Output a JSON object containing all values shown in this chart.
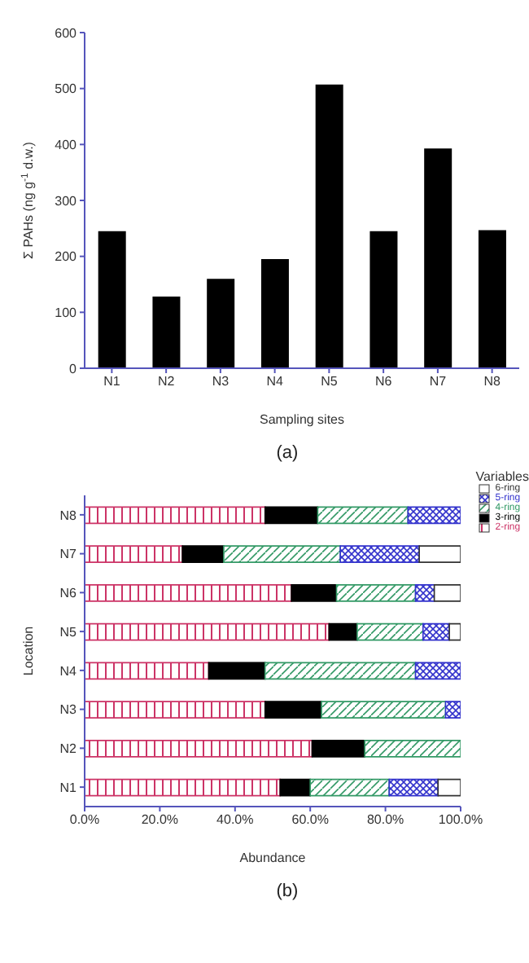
{
  "chart_data": [
    {
      "type": "bar",
      "categories": [
        "N1",
        "N2",
        "N3",
        "N4",
        "N5",
        "N6",
        "N7",
        "N8"
      ],
      "values": [
        245,
        128,
        160,
        195,
        507,
        245,
        393,
        247
      ],
      "color": "#000000",
      "xlabel": "Sampling sites",
      "ylabel": "Σ PAHs (ng g$^{-1}$ d.w.)",
      "ylim": [
        0,
        600
      ],
      "yticks": [
        0,
        100,
        200,
        300,
        400,
        500,
        600
      ],
      "annotations": [
        "(a)"
      ]
    },
    {
      "type": "bar",
      "orientation": "horizontal",
      "stacked": true,
      "categories": [
        "N8",
        "N7",
        "N6",
        "N5",
        "N4",
        "N3",
        "N2",
        "N1"
      ],
      "series": [
        {
          "name": "2-ring",
          "color": "#cc3366",
          "values": [
            48,
            26,
            55,
            65,
            33,
            48,
            60.5,
            52
          ]
        },
        {
          "name": "3-ring",
          "color": "#000000",
          "values": [
            14,
            11,
            12,
            7.5,
            15,
            15,
            14,
            8
          ]
        },
        {
          "name": "4-ring",
          "color": "#339966",
          "values": [
            24,
            31,
            21,
            17.5,
            40,
            33,
            25.5,
            21
          ]
        },
        {
          "name": "5-ring",
          "color": "#3333cc",
          "values": [
            14,
            21,
            5,
            7,
            12,
            4,
            0,
            13
          ]
        },
        {
          "name": "6-ring",
          "color": "#333333",
          "values": [
            0,
            11,
            7,
            3,
            0,
            0,
            0,
            6
          ]
        }
      ],
      "xlabel": "Abundance",
      "ylabel": "Location",
      "legend_title": "Variables",
      "legend": "top right",
      "xlim": [
        0,
        100
      ],
      "xticks": [
        {
          "value": 0,
          "label": "0.0%"
        },
        {
          "value": 20,
          "label": "20.0%"
        },
        {
          "value": 40,
          "label": "40.0%"
        },
        {
          "value": 60,
          "label": "60.0%"
        },
        {
          "value": 80,
          "label": "80.0%"
        },
        {
          "value": 100,
          "label": "100.0%"
        }
      ],
      "annotations": [
        "(b)"
      ]
    }
  ]
}
